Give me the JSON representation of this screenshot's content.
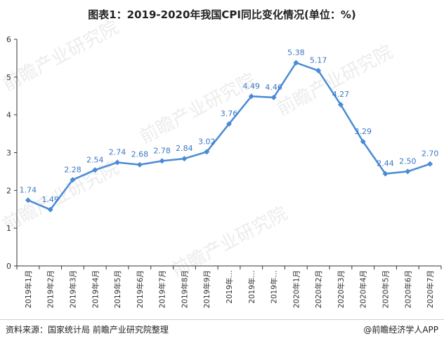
{
  "title": "图表1：2019-2020年我国CPI同比变化情况(单位：%)",
  "source": "资料来源：国家统计局 前瞻产业研究院整理",
  "brand": "@前瞻经济学人APP",
  "watermark": "前瞻产业研究院",
  "colors": {
    "line": "#4a8bd4",
    "label": "#3b78c2",
    "axis": "#333333"
  },
  "chart_data": {
    "type": "line",
    "categories": [
      "2019年1月",
      "2019年2月",
      "2019年3月",
      "2019年4月",
      "2019年5月",
      "2019年6月",
      "2019年7月",
      "2019年8月",
      "2019年9月",
      "2019年…",
      "2019年…",
      "2019年…",
      "2020年1月",
      "2020年2月",
      "2020年3月",
      "2020年4月",
      "2020年5月",
      "2020年6月",
      "2020年7月"
    ],
    "series": [
      {
        "values": [
          1.74,
          1.49,
          2.28,
          2.54,
          2.74,
          2.68,
          2.78,
          2.84,
          3.02,
          3.76,
          4.49,
          4.46,
          5.38,
          5.17,
          4.27,
          3.29,
          2.44,
          2.5,
          2.7
        ]
      }
    ],
    "data_labels": [
      "1.74",
      "1.49",
      "2.28",
      "2.54",
      "2.74",
      "2.68",
      "2.78",
      "2.84",
      "3.02",
      "3.76",
      "4.49",
      "4.46",
      "5.38",
      "5.17",
      "4.27",
      "3.29",
      "2.44",
      "2.50",
      "2.70"
    ],
    "ylim": [
      0,
      6
    ],
    "yticks": [
      "0",
      "1",
      "2",
      "3",
      "4",
      "5",
      "6"
    ],
    "marker": "diamond",
    "grid": false
  }
}
